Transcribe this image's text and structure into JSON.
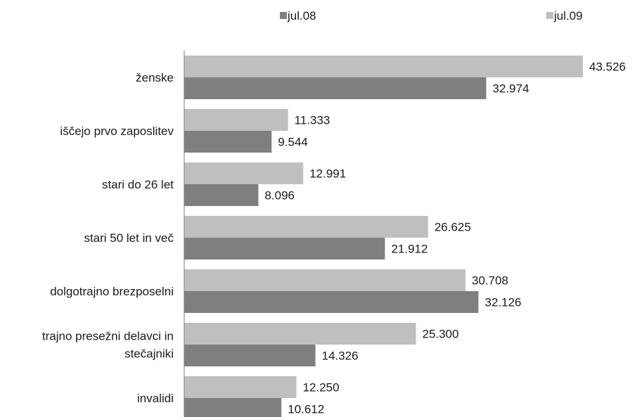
{
  "chart_data": {
    "type": "bar",
    "orientation": "horizontal",
    "title": "",
    "xlabel": "",
    "ylabel": "",
    "grid": false,
    "legend_position": "top",
    "xlim": [
      0,
      45000
    ],
    "categories": [
      "ženske",
      "iščejo prvo zaposlitev",
      "stari do 26 let",
      "stari 50 let in več",
      "dolgotrajno brezposelni",
      "trajno presežni delavci in stečajniki",
      "invalidi"
    ],
    "category_lines": [
      [
        "ženske"
      ],
      [
        "iščejo prvo zaposlitev"
      ],
      [
        "stari do 26 let"
      ],
      [
        "stari 50 let in več"
      ],
      [
        "dolgotrajno brezposelni"
      ],
      [
        "trajno presežni delavci in",
        "stečajniki"
      ],
      [
        "invalidi"
      ]
    ],
    "series": [
      {
        "name": "jul.09",
        "color": "#bfbfbf",
        "values": [
          43526,
          11333,
          12991,
          26625,
          30708,
          25300,
          12250
        ],
        "labels": [
          "43.526",
          "11.333",
          "12.991",
          "26.625",
          "30.708",
          "25.300",
          "12.250"
        ]
      },
      {
        "name": "jul.08",
        "color": "#7f7f7f",
        "values": [
          32974,
          9544,
          8096,
          21912,
          32126,
          14326,
          10612
        ],
        "labels": [
          "32.974",
          "9.544",
          "8.096",
          "21.912",
          "32.126",
          "14.326",
          "10.612"
        ]
      }
    ],
    "legend": [
      {
        "name": "jul.08",
        "color": "#7f7f7f"
      },
      {
        "name": "jul.09",
        "color": "#bfbfbf"
      }
    ]
  }
}
